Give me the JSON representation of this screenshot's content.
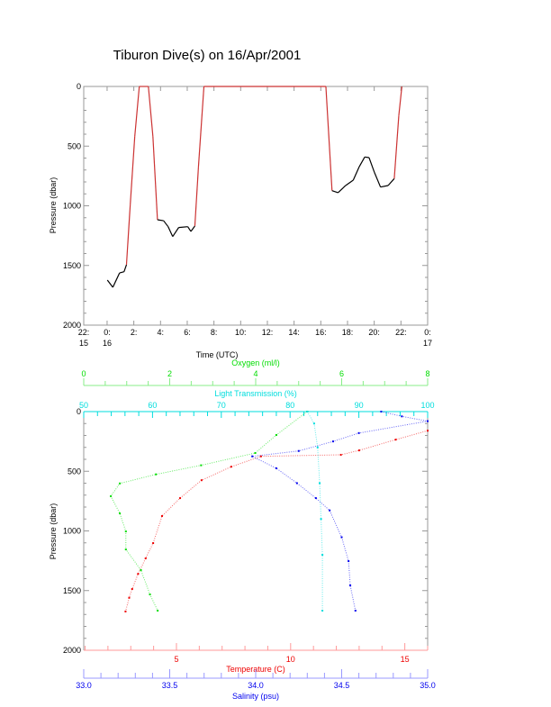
{
  "chart_data": [
    {
      "type": "line",
      "title": "Tiburon Dive(s) on 16/Apr/2001",
      "xlabel": "Time (UTC)",
      "ylabel": "Pressure (dbar)",
      "x_units": "hours since 0:00 on 16",
      "xlim": [
        -1.75,
        24
      ],
      "ylim": [
        2000,
        0
      ],
      "xticks": [
        {
          "v": -1.75,
          "l1": "22:",
          "l2": "15"
        },
        {
          "v": 0,
          "l1": "0:",
          "l2": "16"
        },
        {
          "v": 2,
          "l1": "2:",
          "l2": ""
        },
        {
          "v": 4,
          "l1": "4:",
          "l2": ""
        },
        {
          "v": 6,
          "l1": "6:",
          "l2": ""
        },
        {
          "v": 8,
          "l1": "8:",
          "l2": ""
        },
        {
          "v": 10,
          "l1": "10:",
          "l2": ""
        },
        {
          "v": 12,
          "l1": "12:",
          "l2": ""
        },
        {
          "v": 14,
          "l1": "14:",
          "l2": ""
        },
        {
          "v": 16,
          "l1": "16:",
          "l2": ""
        },
        {
          "v": 18,
          "l1": "18:",
          "l2": ""
        },
        {
          "v": 20,
          "l1": "20:",
          "l2": ""
        },
        {
          "v": 22,
          "l1": "22:",
          "l2": ""
        },
        {
          "v": 24,
          "l1": "0:",
          "l2": "17"
        }
      ],
      "yticks": [
        "0",
        "500",
        "1000",
        "1500",
        "2000"
      ],
      "series": [
        {
          "name": "Pressure",
          "color": "#000000",
          "transit_color": "#cc3333",
          "points": [
            [
              0.02,
              1623
            ],
            [
              0.43,
              1683
            ],
            [
              0.93,
              1563
            ],
            [
              1.27,
              1552
            ],
            [
              1.45,
              1494
            ],
            [
              1.73,
              996
            ],
            [
              2.07,
              420
            ],
            [
              2.41,
              0
            ],
            [
              3.09,
              0
            ],
            [
              3.43,
              420
            ],
            [
              3.77,
              1117
            ],
            [
              4.23,
              1125
            ],
            [
              4.57,
              1175
            ],
            [
              4.91,
              1258
            ],
            [
              5.36,
              1182
            ],
            [
              6.04,
              1175
            ],
            [
              6.27,
              1215
            ],
            [
              6.57,
              1170
            ],
            [
              6.84,
              672
            ],
            [
              7.25,
              0
            ],
            [
              16.38,
              0
            ],
            [
              16.84,
              873
            ],
            [
              17.29,
              890
            ],
            [
              17.86,
              830
            ],
            [
              18.43,
              785
            ],
            [
              18.88,
              672
            ],
            [
              19.29,
              591
            ],
            [
              19.61,
              596
            ],
            [
              20.02,
              722
            ],
            [
              20.47,
              843
            ],
            [
              21.04,
              830
            ],
            [
              21.5,
              772
            ],
            [
              21.84,
              244
            ],
            [
              22.07,
              0
            ]
          ]
        }
      ]
    },
    {
      "type": "scatter",
      "ylabel": "Pressure (dbar)",
      "ylim": [
        2000,
        0
      ],
      "yticks": [
        "0",
        "500",
        "1000",
        "1500",
        "2000"
      ],
      "axes": {
        "oxygen": {
          "label": "Oxygen (ml/l)",
          "color": "#00dd00",
          "range": [
            0,
            8
          ],
          "ticks": [
            "0",
            "2",
            "4",
            "6",
            "8"
          ]
        },
        "light": {
          "label": "Light Transmission (%)",
          "color": "#00dddd",
          "range": [
            50,
            100
          ],
          "ticks": [
            "50",
            "60",
            "70",
            "80",
            "90",
            "100"
          ]
        },
        "temperature": {
          "label": "Temperature (C)",
          "color": "#ee0000",
          "range": [
            0.94,
            16
          ],
          "ticks": [
            "5",
            "10",
            "15"
          ]
        },
        "salinity": {
          "label": "Salinity (psu)",
          "color": "#0000ee",
          "range": [
            33.0,
            35.0
          ],
          "ticks": [
            "33.0",
            "33.5",
            "34.0",
            "34.5",
            "35.0"
          ]
        }
      },
      "series": [
        {
          "name": "Temperature",
          "axis": "temperature",
          "color": "#ee0000",
          "points": [
            [
              16,
              160
            ],
            [
              14.6,
              235
            ],
            [
              13,
              325
            ],
            [
              12.2,
              362
            ],
            [
              8.7,
              375
            ],
            [
              7.4,
              462
            ],
            [
              6.1,
              575
            ],
            [
              5.16,
              725
            ],
            [
              4.37,
              875
            ],
            [
              3.98,
              1102
            ],
            [
              3.65,
              1230
            ],
            [
              3.32,
              1360
            ],
            [
              3.06,
              1487
            ],
            [
              2.93,
              1560
            ],
            [
              2.77,
              1675
            ]
          ]
        },
        {
          "name": "Oxygen",
          "axis": "oxygen",
          "color": "#00dd00",
          "points": [
            [
              5.2,
              0
            ],
            [
              4.48,
              196
            ],
            [
              3.99,
              347
            ],
            [
              2.73,
              450
            ],
            [
              1.68,
              526
            ],
            [
              0.84,
              602
            ],
            [
              0.63,
              709
            ],
            [
              0.84,
              853
            ],
            [
              0.98,
              1004
            ],
            [
              0.98,
              1155
            ],
            [
              1.33,
              1328
            ],
            [
              1.54,
              1532
            ],
            [
              1.72,
              1668
            ]
          ]
        },
        {
          "name": "Light Transmission",
          "axis": "light",
          "color": "#00dddd",
          "points": [
            [
              82.5,
              0
            ],
            [
              83.5,
              100
            ],
            [
              84,
              300
            ],
            [
              84.3,
              600
            ],
            [
              84.5,
              900
            ],
            [
              84.7,
              1200
            ],
            [
              84.7,
              1668
            ]
          ]
        },
        {
          "name": "Salinity",
          "axis": "salinity",
          "color": "#0000ee",
          "points": [
            [
              34.73,
              0
            ],
            [
              34.85,
              40
            ],
            [
              35.0,
              80
            ],
            [
              34.6,
              180
            ],
            [
              34.45,
              250
            ],
            [
              34.25,
              330
            ],
            [
              33.98,
              375
            ],
            [
              34.12,
              475
            ],
            [
              34.24,
              600
            ],
            [
              34.35,
              725
            ],
            [
              34.43,
              828
            ],
            [
              34.5,
              1053
            ],
            [
              34.54,
              1253
            ],
            [
              34.55,
              1457
            ],
            [
              34.58,
              1668
            ]
          ]
        }
      ]
    }
  ]
}
